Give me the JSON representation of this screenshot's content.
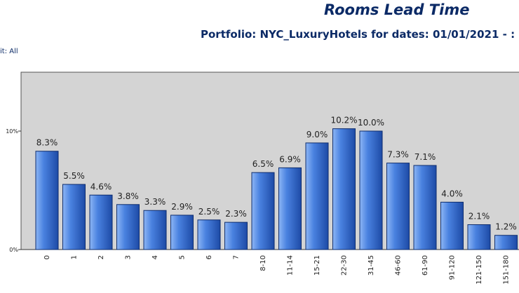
{
  "report": {
    "title": "Rooms Lead Time",
    "subtitle": "Portfolio: NYC_LuxuryHotels for dates: 01/01/2021 - :",
    "filter": "it: All"
  },
  "colors": {
    "plot_background": "#d4d4d4",
    "bar_light": "#8db6f5",
    "bar_mid": "#4a82e0",
    "bar_dark": "#1d4aa6",
    "bar_stroke": "#0e2d6e"
  },
  "chart_data": {
    "type": "bar",
    "title": "",
    "xlabel": "",
    "ylabel": "",
    "ylim": [
      0,
      0.15
    ],
    "grid": false,
    "yticks": [
      {
        "value": 0,
        "label": "0%"
      },
      {
        "value": 0.1,
        "label": "10%"
      }
    ],
    "categories": [
      "0",
      "1",
      "2",
      "3",
      "4",
      "5",
      "6",
      "7",
      "8-10",
      "11-14",
      "15-21",
      "22-30",
      "31-45",
      "46-60",
      "61-90",
      "91-120",
      "121-150",
      "151-180"
    ],
    "values": [
      0.083,
      0.055,
      0.046,
      0.038,
      0.033,
      0.029,
      0.025,
      0.023,
      0.065,
      0.069,
      0.09,
      0.102,
      0.1,
      0.073,
      0.071,
      0.04,
      0.021,
      0.012
    ],
    "data_labels": [
      "8.3%",
      "5.5%",
      "4.6%",
      "3.8%",
      "3.3%",
      "2.9%",
      "2.5%",
      "2.3%",
      "6.5%",
      "6.9%",
      "9.0%",
      "10.2%",
      "10.0%",
      "7.3%",
      "7.1%",
      "4.0%",
      "2.1%",
      "1.2%"
    ]
  }
}
